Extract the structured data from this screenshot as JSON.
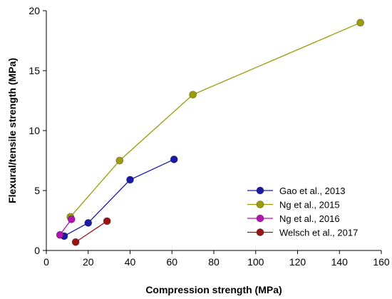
{
  "chart_data": {
    "type": "line",
    "xlabel": "Compression strength (MPa)",
    "ylabel": "Flexural/tensile strength (MPa)",
    "xlim": [
      0,
      160
    ],
    "ylim": [
      0,
      20
    ],
    "xticks": [
      0,
      20,
      40,
      60,
      80,
      100,
      120,
      140,
      160
    ],
    "yticks": [
      0,
      5,
      10,
      15,
      20
    ],
    "grid": false,
    "legend_position": "bottom-right",
    "series": [
      {
        "name": "Gao et al., 2013",
        "color": "#1a1aa6",
        "x": [
          8.5,
          20,
          40,
          61
        ],
        "y": [
          1.2,
          2.3,
          5.9,
          7.6
        ]
      },
      {
        "name": "Ng et al., 2015",
        "color": "#9c9c0a",
        "x": [
          11.5,
          35,
          70,
          150
        ],
        "y": [
          2.8,
          7.5,
          13.0,
          19.0
        ]
      },
      {
        "name": "Ng et al., 2016",
        "color": "#b214b2",
        "x": [
          6.5,
          12
        ],
        "y": [
          1.3,
          2.6
        ]
      },
      {
        "name": "Welsch et al., 2017",
        "color": "#9a1414",
        "x": [
          14,
          29
        ],
        "y": [
          0.7,
          2.45
        ]
      }
    ]
  }
}
